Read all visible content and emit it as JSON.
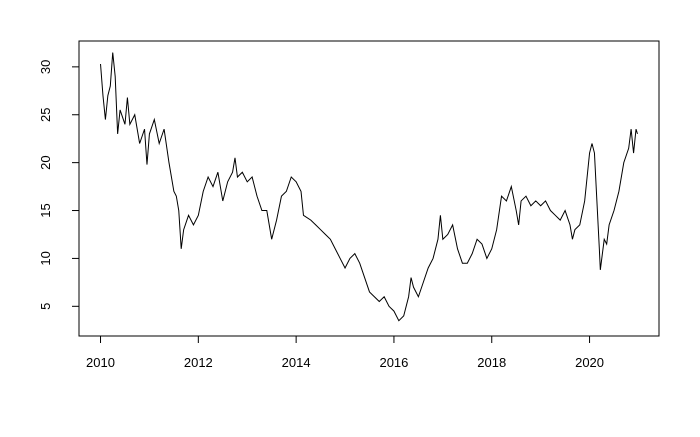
{
  "chart_data": {
    "type": "line",
    "color": "#000000",
    "x": [
      2010.0,
      2010.05,
      2010.1,
      2010.15,
      2010.2,
      2010.25,
      2010.3,
      2010.35,
      2010.4,
      2010.5,
      2010.55,
      2010.6,
      2010.7,
      2010.8,
      2010.9,
      2010.95,
      2011.0,
      2011.1,
      2011.2,
      2011.3,
      2011.4,
      2011.5,
      2011.55,
      2011.6,
      2011.65,
      2011.7,
      2011.8,
      2011.9,
      2012.0,
      2012.1,
      2012.2,
      2012.3,
      2012.4,
      2012.5,
      2012.6,
      2012.7,
      2012.75,
      2012.8,
      2012.9,
      2013.0,
      2013.1,
      2013.2,
      2013.3,
      2013.4,
      2013.5,
      2013.6,
      2013.7,
      2013.8,
      2013.9,
      2014.0,
      2014.1,
      2014.15,
      2014.3,
      2014.4,
      2014.5,
      2014.6,
      2014.7,
      2014.8,
      2014.9,
      2015.0,
      2015.1,
      2015.2,
      2015.3,
      2015.4,
      2015.5,
      2015.6,
      2015.7,
      2015.8,
      2015.9,
      2016.0,
      2016.1,
      2016.2,
      2016.3,
      2016.35,
      2016.4,
      2016.5,
      2016.6,
      2016.7,
      2016.8,
      2016.9,
      2016.95,
      2017.0,
      2017.1,
      2017.2,
      2017.3,
      2017.4,
      2017.5,
      2017.6,
      2017.7,
      2017.8,
      2017.9,
      2018.0,
      2018.1,
      2018.2,
      2018.3,
      2018.4,
      2018.5,
      2018.55,
      2018.6,
      2018.7,
      2018.8,
      2018.9,
      2019.0,
      2019.1,
      2019.2,
      2019.3,
      2019.4,
      2019.5,
      2019.6,
      2019.65,
      2019.7,
      2019.8,
      2019.9,
      2020.0,
      2020.05,
      2020.1,
      2020.15,
      2020.2,
      2020.22,
      2020.3,
      2020.35,
      2020.4,
      2020.5,
      2020.6,
      2020.7,
      2020.8,
      2020.85,
      2020.9,
      2020.95,
      2020.98
    ],
    "values": [
      30.3,
      27,
      24.5,
      27,
      28,
      31.5,
      29,
      23,
      25.5,
      24,
      26.8,
      24,
      25,
      22,
      23.5,
      19.8,
      23,
      24.5,
      22,
      23.5,
      20,
      17,
      16.5,
      15,
      11,
      13,
      14.5,
      13.5,
      14.5,
      17,
      18.5,
      17.5,
      19,
      16,
      18,
      19,
      20.5,
      18.5,
      19,
      18,
      18.5,
      16.5,
      15,
      15,
      12,
      14,
      16.5,
      17,
      18.5,
      18,
      17,
      14.5,
      14,
      13.5,
      13,
      12.5,
      12,
      11,
      10,
      9,
      10,
      10.5,
      9.5,
      8,
      6.5,
      6,
      5.5,
      6,
      5,
      4.5,
      3.5,
      4,
      6,
      8,
      7,
      6,
      7.5,
      9,
      10,
      12,
      14.5,
      12,
      12.5,
      13.5,
      11,
      9.5,
      9.5,
      10.5,
      12,
      11.5,
      10,
      11,
      13,
      16.5,
      16,
      17.5,
      15,
      13.5,
      16,
      16.5,
      15.5,
      16,
      15.5,
      16,
      15,
      14.5,
      14,
      15,
      13.5,
      12,
      13,
      13.5,
      16,
      21,
      22,
      21,
      16,
      11,
      8.8,
      12,
      11.5,
      13.5,
      15,
      17,
      20,
      21.5,
      23.5,
      21,
      23.5,
      23
    ],
    "xlim": [
      2009.56,
      2021.42
    ],
    "ylim": [
      1.9,
      32.7
    ],
    "xticks": [
      2010,
      2012,
      2014,
      2016,
      2018,
      2020
    ],
    "yticks": [
      5,
      10,
      15,
      20,
      25,
      30
    ]
  }
}
